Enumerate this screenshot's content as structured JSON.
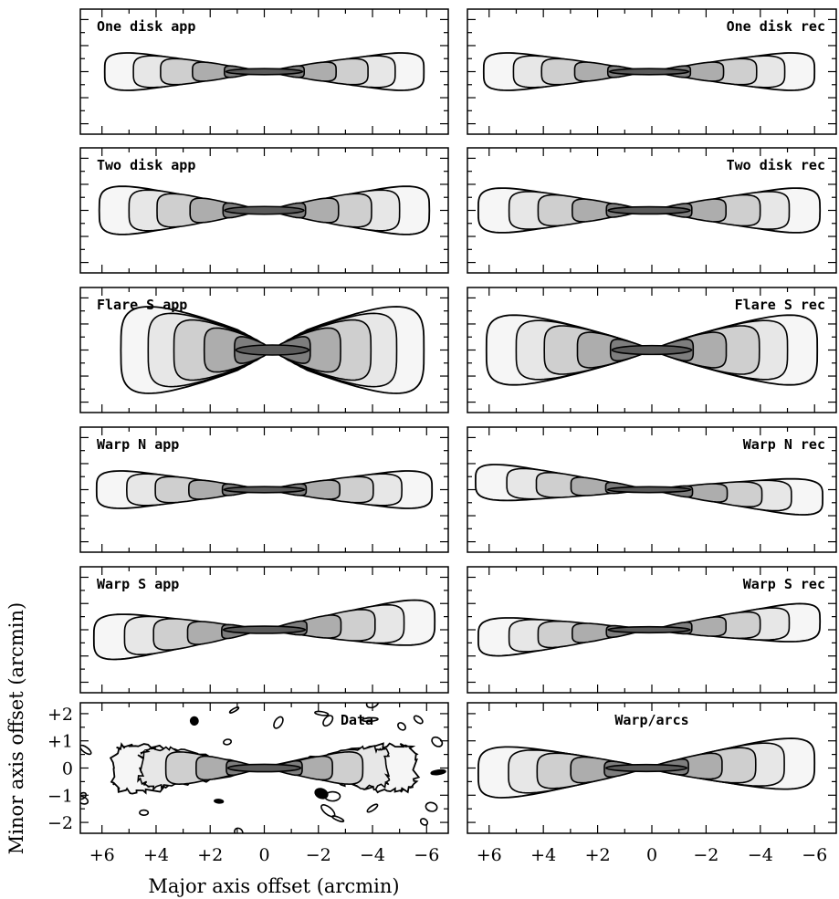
{
  "figure": {
    "xlabel": "Major axis offset (arcmin)",
    "ylabel": "Minor axis offset (arcmin)"
  },
  "chart_data": {
    "type": "contour",
    "xlim": [
      6.8,
      -6.8
    ],
    "ylim": [
      -2.4,
      2.4
    ],
    "x_tick_labels": [
      "+6",
      "+4",
      "+2",
      "0",
      "−2",
      "−4",
      "−6"
    ],
    "x_tick_values": [
      6,
      4,
      2,
      0,
      -2,
      -4,
      -6
    ],
    "y_tick_labels": [
      "+2",
      "+1",
      "0",
      "−1",
      "−2"
    ],
    "y_tick_values": [
      2,
      1,
      0,
      -1,
      -2
    ],
    "contour_scale": [
      1.0,
      0.82,
      0.65,
      0.45,
      0.25
    ],
    "contour_fill": [
      "#f6f6f6",
      "#e7e7e7",
      "#cfcfcf",
      "#adadad",
      "#7e7e7e"
    ],
    "panels": [
      {
        "label": "One disk app",
        "label_side": "left",
        "label_align": "start",
        "x_center": 0.0,
        "x_half": 5.9,
        "y_half": 1.05,
        "flare": 0.0,
        "tilt": 0.0
      },
      {
        "label": "One disk rec",
        "label_side": "right",
        "label_align": "end",
        "x_center": 0.1,
        "x_half": 6.1,
        "y_half": 1.05,
        "flare": 0.0,
        "tilt": 0.0
      },
      {
        "label": "Two disk app",
        "label_side": "left",
        "label_align": "start",
        "x_center": 0.0,
        "x_half": 6.1,
        "y_half": 1.35,
        "flare": 0.0,
        "tilt": 0.0
      },
      {
        "label": "Two disk rec",
        "label_side": "right",
        "label_align": "end",
        "x_center": 0.1,
        "x_half": 6.3,
        "y_half": 1.25,
        "flare": 0.0,
        "tilt": 0.0
      },
      {
        "label": "Flare S app",
        "label_side": "left",
        "label_align": "start",
        "x_center": -0.3,
        "x_half": 5.6,
        "y_half": 1.75,
        "flare": 0.5,
        "tilt": 0.0
      },
      {
        "label": "Flare S rec",
        "label_side": "right",
        "label_align": "end",
        "x_center": 0.0,
        "x_half": 6.1,
        "y_half": 1.55,
        "flare": 0.35,
        "tilt": 0.0
      },
      {
        "label": "Warp N app",
        "label_side": "left",
        "label_align": "start",
        "x_center": 0.0,
        "x_half": 6.2,
        "y_half": 1.05,
        "flare": 0.0,
        "tilt": 0.0
      },
      {
        "label": "Warp N rec",
        "label_side": "right",
        "label_align": "end",
        "x_center": 0.1,
        "x_half": 6.4,
        "y_half": 1.0,
        "flare": 0.0,
        "tilt": 0.05
      },
      {
        "label": "Warp S app",
        "label_side": "left",
        "label_align": "start",
        "x_center": 0.0,
        "x_half": 6.3,
        "y_half": 1.25,
        "flare": 0.0,
        "tilt": -0.05
      },
      {
        "label": "Warp S rec",
        "label_side": "right",
        "label_align": "end",
        "x_center": 0.1,
        "x_half": 6.3,
        "y_half": 1.05,
        "flare": 0.0,
        "tilt": -0.05
      },
      {
        "label": "Data",
        "label_side": "right",
        "label_align": "middle",
        "x_center": 0.0,
        "x_half": 5.6,
        "y_half": 1.25,
        "flare": 0.0,
        "tilt": 0.0,
        "noisy": true
      },
      {
        "label": "Warp/arcs",
        "label_side": "center",
        "label_align": "middle",
        "x_center": 0.2,
        "x_half": 6.2,
        "y_half": 1.15,
        "flare": 0.25,
        "tilt": -0.03
      }
    ]
  }
}
